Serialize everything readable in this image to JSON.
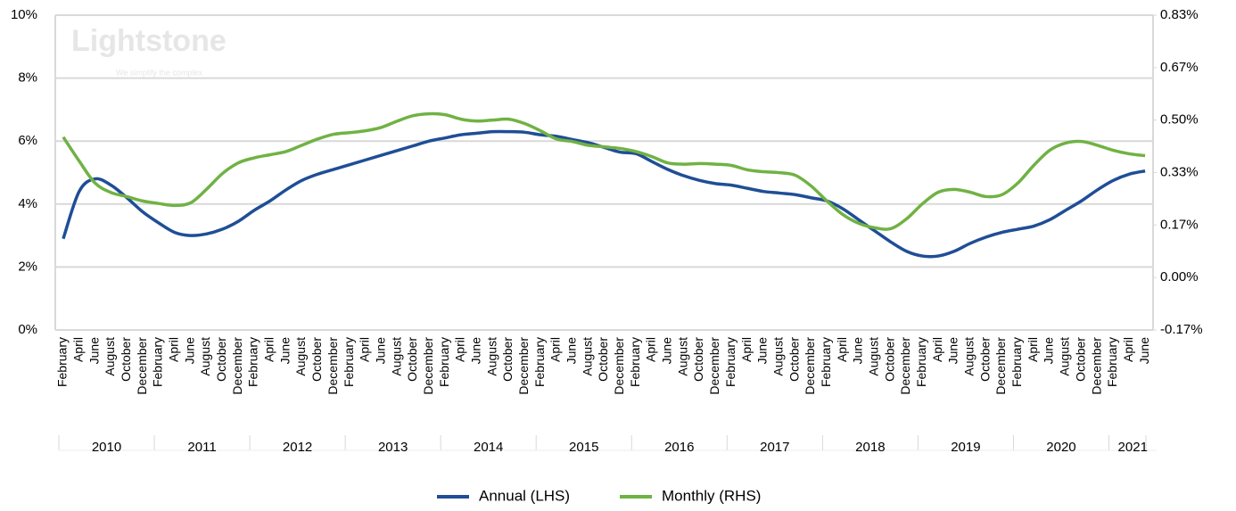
{
  "chart_data": {
    "type": "line",
    "watermark": {
      "text": "Lightstone",
      "tagline": "We simplify the complex"
    },
    "groups": [
      {
        "label": "2010",
        "months": [
          "February",
          "April",
          "June",
          "August",
          "October",
          "December"
        ]
      },
      {
        "label": "2011",
        "months": [
          "February",
          "April",
          "June",
          "August",
          "October",
          "December"
        ]
      },
      {
        "label": "2012",
        "months": [
          "February",
          "April",
          "June",
          "August",
          "October",
          "December"
        ]
      },
      {
        "label": "2013",
        "months": [
          "February",
          "April",
          "June",
          "August",
          "October",
          "December"
        ]
      },
      {
        "label": "2014",
        "months": [
          "February",
          "April",
          "June",
          "August",
          "October",
          "December"
        ]
      },
      {
        "label": "2015",
        "months": [
          "February",
          "April",
          "June",
          "August",
          "October",
          "December"
        ]
      },
      {
        "label": "2016",
        "months": [
          "February",
          "April",
          "June",
          "August",
          "October",
          "December"
        ]
      },
      {
        "label": "2017",
        "months": [
          "February",
          "April",
          "June",
          "August",
          "October",
          "December"
        ]
      },
      {
        "label": "2018",
        "months": [
          "February",
          "April",
          "June",
          "August",
          "October",
          "December"
        ]
      },
      {
        "label": "2019",
        "months": [
          "February",
          "April",
          "June",
          "August",
          "October",
          "December"
        ]
      },
      {
        "label": "2020",
        "months": [
          "February",
          "April",
          "June",
          "August",
          "October",
          "December"
        ]
      },
      {
        "label": "2021",
        "months": [
          "February",
          "April",
          "June"
        ]
      }
    ],
    "series": [
      {
        "name": "Annual (LHS)",
        "color": "#1f4e96",
        "axis": "y",
        "values": [
          2.9,
          4.4,
          4.8,
          4.6,
          4.2,
          3.75,
          3.4,
          3.1,
          3.0,
          3.05,
          3.2,
          3.45,
          3.8,
          4.1,
          4.45,
          4.75,
          4.95,
          5.1,
          5.25,
          5.4,
          5.55,
          5.7,
          5.85,
          6.0,
          6.1,
          6.2,
          6.25,
          6.3,
          6.3,
          6.28,
          6.2,
          6.15,
          6.05,
          5.95,
          5.8,
          5.65,
          5.6,
          5.35,
          5.1,
          4.9,
          4.75,
          4.65,
          4.6,
          4.5,
          4.4,
          4.35,
          4.3,
          4.2,
          4.1,
          3.85,
          3.5,
          3.15,
          2.8,
          2.5,
          2.35,
          2.35,
          2.5,
          2.75,
          2.95,
          3.1,
          3.2,
          3.3,
          3.5,
          3.8,
          4.1,
          4.45,
          4.75,
          4.95,
          5.05
        ]
      },
      {
        "name": "Monthly (RHS)",
        "color": "#70b244",
        "axis": "y2",
        "values": [
          0.446,
          0.37,
          0.3,
          0.27,
          0.257,
          0.243,
          0.235,
          0.229,
          0.237,
          0.28,
          0.33,
          0.364,
          0.38,
          0.39,
          0.4,
          0.42,
          0.44,
          0.455,
          0.46,
          0.466,
          0.477,
          0.497,
          0.514,
          0.52,
          0.517,
          0.503,
          0.497,
          0.5,
          0.503,
          0.489,
          0.466,
          0.44,
          0.432,
          0.42,
          0.415,
          0.41,
          0.4,
          0.384,
          0.364,
          0.36,
          0.362,
          0.36,
          0.356,
          0.342,
          0.336,
          0.333,
          0.325,
          0.291,
          0.243,
          0.2,
          0.172,
          0.158,
          0.155,
          0.186,
          0.234,
          0.271,
          0.28,
          0.271,
          0.257,
          0.263,
          0.3,
          0.356,
          0.404,
          0.427,
          0.432,
          0.42,
          0.404,
          0.393,
          0.387
        ]
      }
    ],
    "ylim": [
      0,
      10
    ],
    "yticks": [
      {
        "value": 0,
        "label": "0%"
      },
      {
        "value": 2,
        "label": "2%"
      },
      {
        "value": 4,
        "label": "4%"
      },
      {
        "value": 6,
        "label": "6%"
      },
      {
        "value": 8,
        "label": "8%"
      },
      {
        "value": 10,
        "label": "10%"
      }
    ],
    "y2lim": [
      -0.1667,
      0.8333
    ],
    "y2ticks": [
      {
        "value": -0.1667,
        "label": "-0.17%"
      },
      {
        "value": 0,
        "label": "0.00%"
      },
      {
        "value": 0.1667,
        "label": "0.17%"
      },
      {
        "value": 0.3333,
        "label": "0.33%"
      },
      {
        "value": 0.5,
        "label": "0.50%"
      },
      {
        "value": 0.6667,
        "label": "0.67%"
      },
      {
        "value": 0.8333,
        "label": "0.83%"
      }
    ],
    "grid": true,
    "legend": "bottom"
  }
}
